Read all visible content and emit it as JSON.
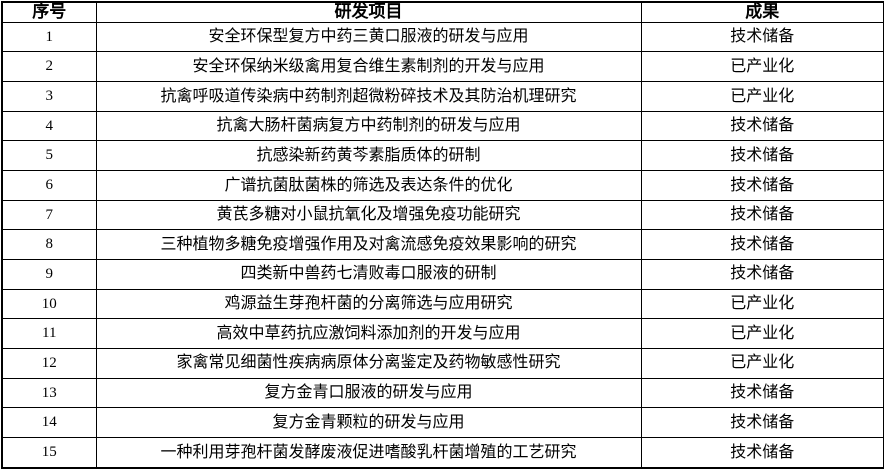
{
  "table": {
    "headers": {
      "no": "序号",
      "project": "研发项目",
      "result": "成果"
    },
    "result_values": [
      "技术储备",
      "已产业化"
    ],
    "text_color": "#000000",
    "border_color": "#000000",
    "background_color": "#ffffff",
    "rows": [
      {
        "no": "1",
        "project": "安全环保型复方中药三黄口服液的研发与应用",
        "result": "技术储备"
      },
      {
        "no": "2",
        "project": "安全环保纳米级禽用复合维生素制剂的开发与应用",
        "result": "已产业化"
      },
      {
        "no": "3",
        "project": "抗禽呼吸道传染病中药制剂超微粉碎技术及其防治机理研究",
        "result": "已产业化"
      },
      {
        "no": "4",
        "project": "抗禽大肠杆菌病复方中药制剂的研发与应用",
        "result": "技术储备"
      },
      {
        "no": "5",
        "project": "抗感染新药黄芩素脂质体的研制",
        "result": "技术储备"
      },
      {
        "no": "6",
        "project": "广谱抗菌肽菌株的筛选及表达条件的优化",
        "result": "技术储备"
      },
      {
        "no": "7",
        "project": "黄芪多糖对小鼠抗氧化及增强免疫功能研究",
        "result": "技术储备"
      },
      {
        "no": "8",
        "project": "三种植物多糖免疫增强作用及对禽流感免疫效果影响的研究",
        "result": "技术储备"
      },
      {
        "no": "9",
        "project": "四类新中兽药七清败毒口服液的研制",
        "result": "技术储备"
      },
      {
        "no": "10",
        "project": "鸡源益生芽孢杆菌的分离筛选与应用研究",
        "result": "已产业化"
      },
      {
        "no": "11",
        "project": "高效中草药抗应激饲料添加剂的开发与应用",
        "result": "已产业化"
      },
      {
        "no": "12",
        "project": "家禽常见细菌性疾病病原体分离鉴定及药物敏感性研究",
        "result": "已产业化"
      },
      {
        "no": "13",
        "project": "复方金青口服液的研发与应用",
        "result": "技术储备"
      },
      {
        "no": "14",
        "project": "复方金青颗粒的研发与应用",
        "result": "技术储备"
      },
      {
        "no": "15",
        "project": "一种利用芽孢杆菌发酵废液促进嗜酸乳杆菌增殖的工艺研究",
        "result": "技术储备"
      }
    ]
  }
}
